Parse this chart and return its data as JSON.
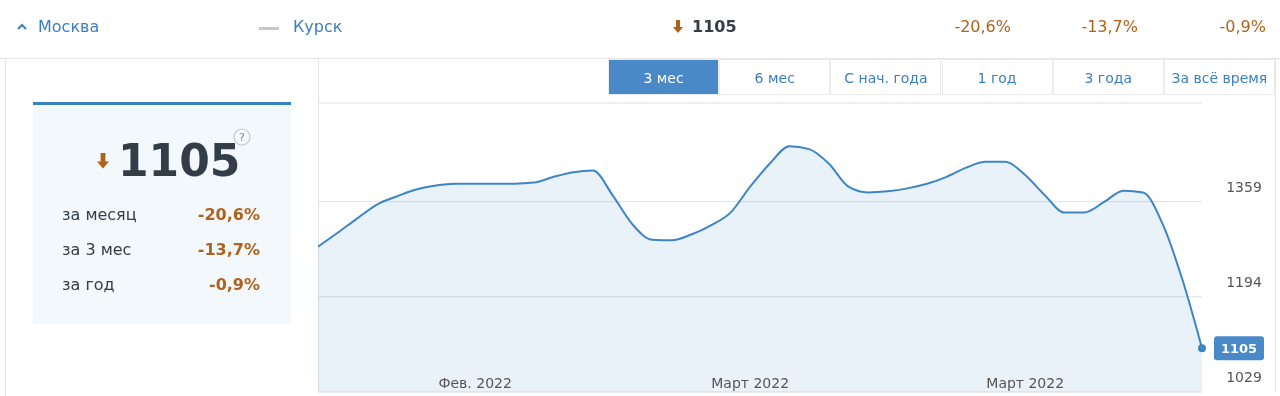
{
  "chart_data": [
    {
      "type": "other",
      "annotations": [
        "Москва",
        "Курск",
        "1105",
        "-20,6%",
        "-13,7%",
        "-0,9%"
      ]
    },
    {
      "type": "other",
      "annotations": [
        "1105",
        "за месяц",
        "-20,6%",
        "за 3 мес",
        "-13,7%",
        "за год",
        "-0,9%",
        "?"
      ]
    },
    {
      "type": "area",
      "categories": [
        null,
        null,
        null,
        null,
        null,
        null,
        null,
        null,
        "Фев. 2022",
        null,
        null,
        null,
        null,
        null,
        null,
        null,
        null,
        null,
        null,
        null,
        null,
        null,
        "Март 2022",
        null,
        null,
        null,
        null,
        null,
        null,
        null,
        null,
        null,
        null,
        null,
        null,
        null,
        "Март 2022",
        null,
        null,
        null,
        null,
        null,
        null,
        null,
        null,
        null
      ],
      "series": [
        {
          "color": "#3d85c6",
          "values": [
            1281,
            1305,
            1330,
            1354,
            1368,
            1380,
            1387,
            1390,
            1390,
            1390,
            1390,
            1392,
            1402,
            1410,
            1413,
            1370,
            1320,
            1293,
            1292,
            1302,
            1318,
            1340,
            1385,
            1425,
            1455,
            1450,
            1425,
            1385,
            1375,
            1377,
            1382,
            1390,
            1402,
            1418,
            1428,
            1428,
            1405,
            1370,
            1340,
            1340,
            1358,
            1378,
            1375,
            1320,
            1224,
            1105
          ]
        }
      ],
      "ylim": [
        1029,
        1530
      ],
      "yticks": [
        1029,
        1194,
        1359
      ],
      "grid": "y",
      "annotations": [
        "3 мес",
        "6 мес",
        "С нач. года",
        "1 год",
        "3 года",
        "За всё время",
        "1105"
      ]
    }
  ]
}
